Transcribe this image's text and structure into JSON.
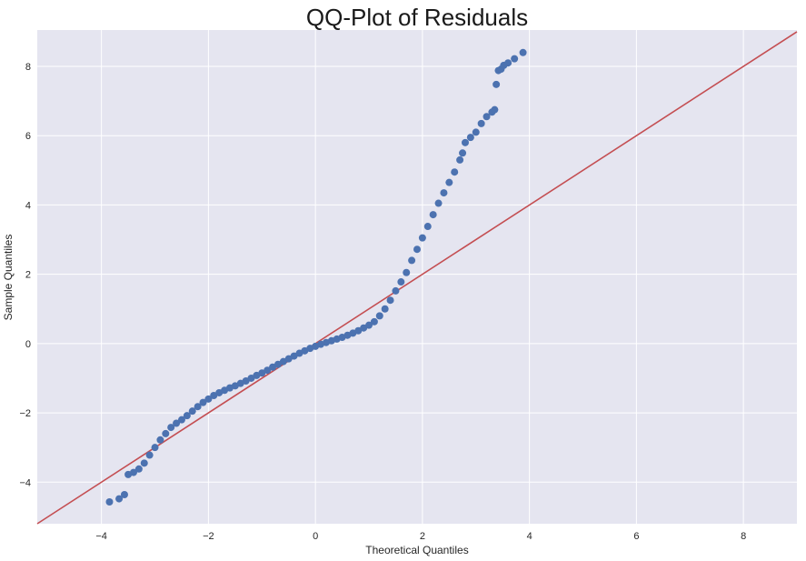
{
  "chart_data": {
    "type": "scatter",
    "title": "QQ-Plot of Residuals",
    "xlabel": "Theoretical Quantiles",
    "ylabel": "Sample Quantiles",
    "xlim": [
      -5.2,
      9.0
    ],
    "ylim": [
      -5.2,
      9.05
    ],
    "xticks": [
      -4,
      -2,
      0,
      2,
      4,
      6,
      8
    ],
    "yticks": [
      -4,
      -2,
      0,
      2,
      4,
      6,
      8
    ],
    "xtick_labels": [
      "−4",
      "−2",
      "0",
      "2",
      "4",
      "6",
      "8"
    ],
    "ytick_labels": [
      "−4",
      "−2",
      "0",
      "2",
      "4",
      "6",
      "8"
    ],
    "grid": true,
    "reference_line": {
      "slope": 1,
      "intercept": 0,
      "color": "#c44e52"
    },
    "series": [
      {
        "color": "#4c72b0",
        "points": [
          [
            -3.85,
            -4.57
          ],
          [
            -3.67,
            -4.48
          ],
          [
            -3.57,
            -4.36
          ],
          [
            -3.5,
            -3.78
          ],
          [
            -3.4,
            -3.72
          ],
          [
            -3.3,
            -3.62
          ],
          [
            -3.2,
            -3.45
          ],
          [
            -3.1,
            -3.22
          ],
          [
            -3.0,
            -3.0
          ],
          [
            -2.9,
            -2.78
          ],
          [
            -2.8,
            -2.6
          ],
          [
            -2.7,
            -2.42
          ],
          [
            -2.6,
            -2.3
          ],
          [
            -2.5,
            -2.2
          ],
          [
            -2.4,
            -2.08
          ],
          [
            -2.3,
            -1.95
          ],
          [
            -2.2,
            -1.82
          ],
          [
            -2.1,
            -1.7
          ],
          [
            -2.0,
            -1.6
          ],
          [
            -1.9,
            -1.5
          ],
          [
            -1.8,
            -1.42
          ],
          [
            -1.7,
            -1.35
          ],
          [
            -1.6,
            -1.28
          ],
          [
            -1.5,
            -1.22
          ],
          [
            -1.4,
            -1.15
          ],
          [
            -1.3,
            -1.08
          ],
          [
            -1.2,
            -1.0
          ],
          [
            -1.1,
            -0.92
          ],
          [
            -1.0,
            -0.85
          ],
          [
            -0.9,
            -0.77
          ],
          [
            -0.8,
            -0.68
          ],
          [
            -0.7,
            -0.6
          ],
          [
            -0.6,
            -0.52
          ],
          [
            -0.5,
            -0.44
          ],
          [
            -0.4,
            -0.36
          ],
          [
            -0.3,
            -0.28
          ],
          [
            -0.2,
            -0.21
          ],
          [
            -0.1,
            -0.14
          ],
          [
            0.0,
            -0.08
          ],
          [
            0.1,
            -0.02
          ],
          [
            0.2,
            0.03
          ],
          [
            0.3,
            0.08
          ],
          [
            0.4,
            0.13
          ],
          [
            0.5,
            0.18
          ],
          [
            0.6,
            0.24
          ],
          [
            0.7,
            0.3
          ],
          [
            0.8,
            0.37
          ],
          [
            0.9,
            0.45
          ],
          [
            1.0,
            0.53
          ],
          [
            1.1,
            0.63
          ],
          [
            1.2,
            0.8
          ],
          [
            1.3,
            1.0
          ],
          [
            1.4,
            1.25
          ],
          [
            1.5,
            1.52
          ],
          [
            1.6,
            1.78
          ],
          [
            1.7,
            2.05
          ],
          [
            1.8,
            2.4
          ],
          [
            1.9,
            2.72
          ],
          [
            2.0,
            3.05
          ],
          [
            2.1,
            3.38
          ],
          [
            2.2,
            3.72
          ],
          [
            2.3,
            4.05
          ],
          [
            2.4,
            4.35
          ],
          [
            2.5,
            4.65
          ],
          [
            2.6,
            4.95
          ],
          [
            2.7,
            5.3
          ],
          [
            2.75,
            5.5
          ],
          [
            2.8,
            5.8
          ],
          [
            2.9,
            5.95
          ],
          [
            3.0,
            6.1
          ],
          [
            3.1,
            6.35
          ],
          [
            3.2,
            6.55
          ],
          [
            3.3,
            6.68
          ],
          [
            3.35,
            6.75
          ],
          [
            3.38,
            7.48
          ],
          [
            3.42,
            7.88
          ],
          [
            3.47,
            7.92
          ],
          [
            3.52,
            8.03
          ],
          [
            3.6,
            8.1
          ],
          [
            3.72,
            8.22
          ],
          [
            3.88,
            8.4
          ]
        ]
      }
    ]
  }
}
